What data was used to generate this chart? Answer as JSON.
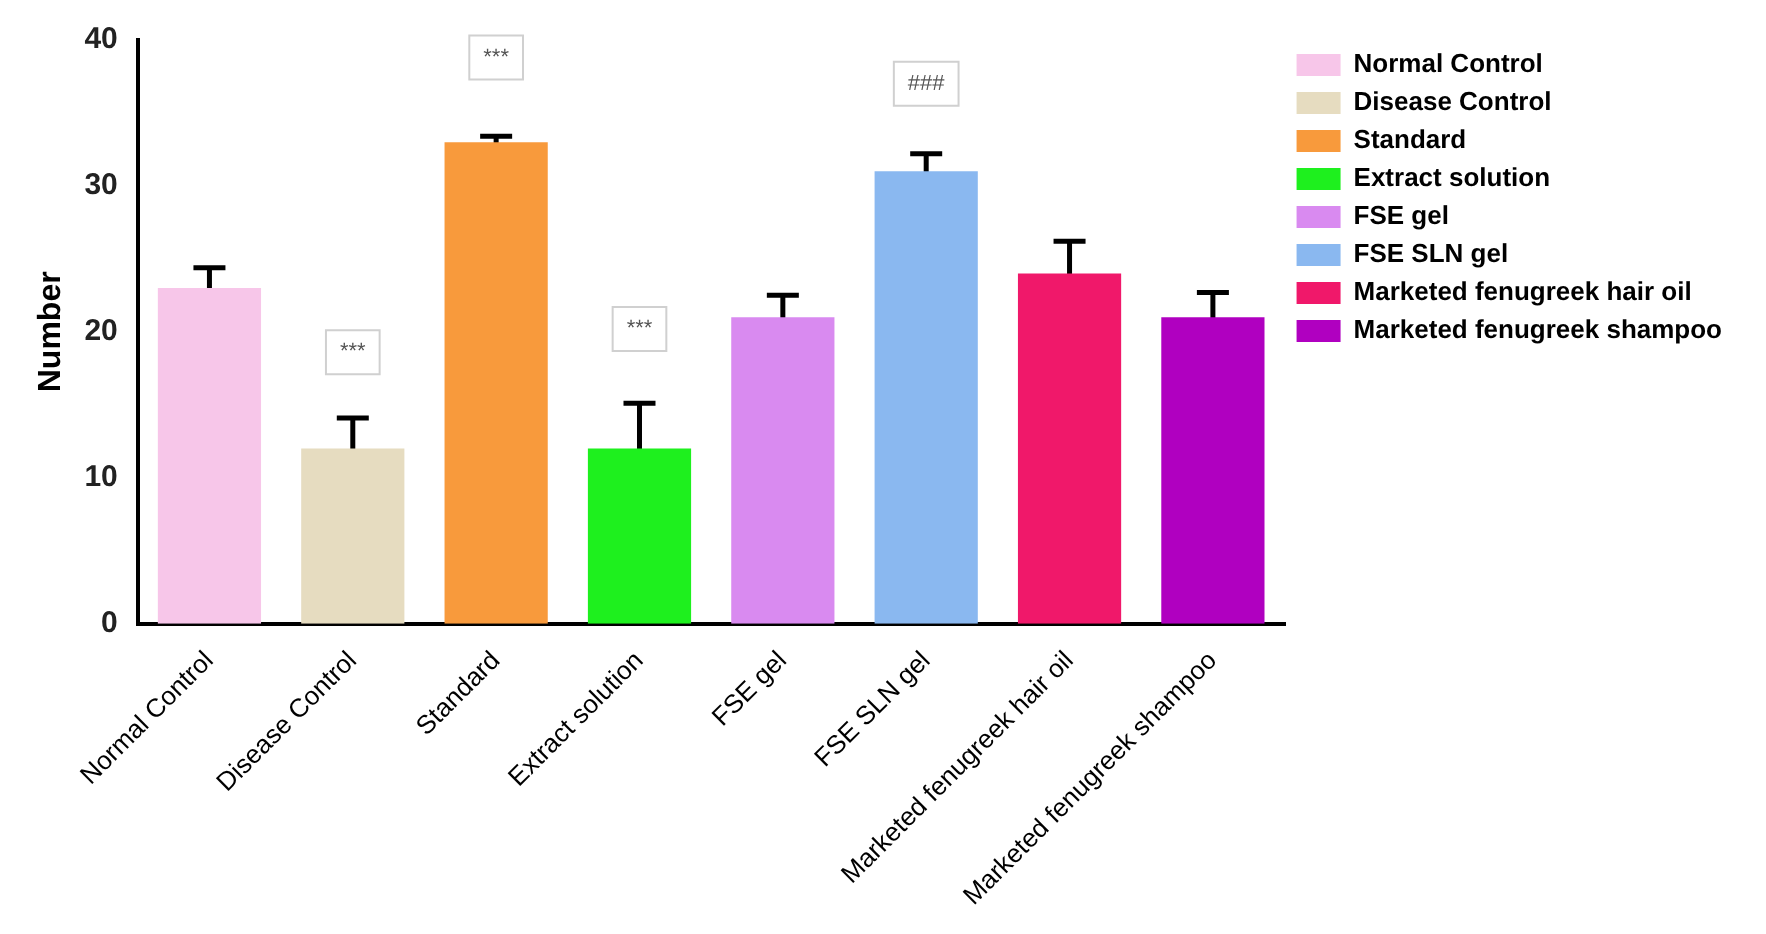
{
  "chart_data": {
    "type": "bar",
    "ylabel": "Number",
    "categories": [
      "Normal Control",
      "Disease Control",
      "Standard",
      "Extract solution",
      "FSE gel",
      "FSE SLN gel",
      "Marketed fenugreek hair oil",
      "Marketed fenugreek shampoo"
    ],
    "series": [
      {
        "name": "Normal Control",
        "color": "#f7c6e9",
        "values": [
          23,
          null,
          null,
          null,
          null,
          null,
          null,
          null
        ],
        "errors": [
          1.4,
          null,
          null,
          null,
          null,
          null,
          null,
          null
        ]
      },
      {
        "name": "Disease Control",
        "color": "#e6dcc0",
        "values": [
          null,
          12,
          null,
          null,
          null,
          null,
          null,
          null
        ],
        "errors": [
          null,
          2.1,
          null,
          null,
          null,
          null,
          null,
          null
        ]
      },
      {
        "name": "Standard",
        "color": "#f89a3c",
        "values": [
          null,
          null,
          33,
          null,
          null,
          null,
          null,
          null
        ],
        "errors": [
          null,
          null,
          0.4,
          null,
          null,
          null,
          null,
          null
        ]
      },
      {
        "name": "Extract solution",
        "color": "#1ef01e",
        "values": [
          null,
          null,
          null,
          12,
          null,
          null,
          null,
          null
        ],
        "errors": [
          null,
          null,
          null,
          3.1,
          null,
          null,
          null,
          null
        ]
      },
      {
        "name": "FSE gel",
        "color": "#d98af0",
        "values": [
          null,
          null,
          null,
          null,
          21,
          null,
          null,
          null
        ],
        "errors": [
          null,
          null,
          null,
          null,
          1.5,
          null,
          null,
          null
        ]
      },
      {
        "name": "FSE SLN gel",
        "color": "#8ab8f0",
        "values": [
          null,
          null,
          null,
          null,
          null,
          31,
          null,
          null
        ],
        "errors": [
          null,
          null,
          null,
          null,
          null,
          1.2,
          null,
          null
        ]
      },
      {
        "name": "Marketed fenugreek hair oil",
        "color": "#f0186a",
        "values": [
          null,
          null,
          null,
          null,
          null,
          null,
          24,
          null
        ],
        "errors": [
          null,
          null,
          null,
          null,
          null,
          null,
          2.2,
          null
        ]
      },
      {
        "name": "Marketed fenugreek shampoo",
        "color": "#b000c0",
        "values": [
          null,
          null,
          null,
          null,
          null,
          null,
          null,
          21
        ],
        "errors": [
          null,
          null,
          null,
          null,
          null,
          null,
          null,
          1.7
        ]
      }
    ],
    "ylim": [
      0,
      40
    ],
    "yticks": [
      0,
      10,
      20,
      30,
      40
    ],
    "grid": false,
    "legend": "top right",
    "annotations": [
      {
        "text": "***",
        "x": "Disease Control",
        "y": 18.6
      },
      {
        "text": "***",
        "x": "Standard",
        "y": 38.8
      },
      {
        "text": "***",
        "x": "Extract solution",
        "y": 20.2
      },
      {
        "text": "###",
        "x": "FSE SLN gel",
        "y": 37
      }
    ]
  }
}
